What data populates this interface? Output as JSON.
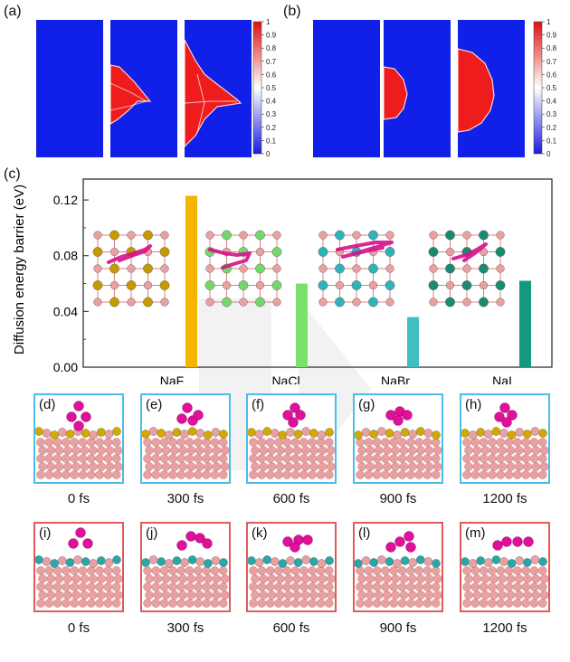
{
  "panel_a": {
    "label": "(a)",
    "colorbar_ticks": [
      "1",
      "0.9",
      "0.8",
      "0.7",
      "0.6",
      "0.5",
      "0.4",
      "0.3",
      "0.2",
      "0.1",
      "0"
    ],
    "frames": [
      0,
      1,
      2
    ]
  },
  "panel_b": {
    "label": "(b)",
    "colorbar_ticks": [
      "1",
      "0.9",
      "0.8",
      "0.7",
      "0.6",
      "0.5",
      "0.4",
      "0.3",
      "0.2",
      "0.1",
      "0"
    ],
    "frames": [
      0,
      1,
      2
    ]
  },
  "panel_c": {
    "label": "(c)",
    "chart_data": {
      "type": "bar",
      "categories": [
        "NaF",
        "NaCl",
        "NaBr",
        "NaI"
      ],
      "values": [
        0.123,
        0.06,
        0.036,
        0.062
      ],
      "colors": [
        "#f5b400",
        "#7be16a",
        "#3fbfc2",
        "#139a7c"
      ],
      "title": "",
      "xlabel": "",
      "ylabel": "Diffusion energy barrier (eV)",
      "ylim": [
        0,
        0.135
      ],
      "yticks": [
        "0.00",
        "0.04",
        "0.08",
        "0.12"
      ],
      "grid": false
    },
    "lattice_colors": [
      "#c49a00",
      "#74d66b",
      "#2fb3b8",
      "#1a8a70"
    ]
  },
  "md_row1": {
    "border_color": "#4bbde8",
    "surface_color": "#d4a800",
    "frames": [
      {
        "label": "(d)",
        "time": "0 fs"
      },
      {
        "label": "(e)",
        "time": "300 fs"
      },
      {
        "label": "(f)",
        "time": "600 fs"
      },
      {
        "label": "(g)",
        "time": "900 fs"
      },
      {
        "label": "(h)",
        "time": "1200 fs"
      }
    ]
  },
  "md_row2": {
    "border_color": "#e05a5a",
    "surface_color": "#2aa6a8",
    "frames": [
      {
        "label": "(i)",
        "time": "0 fs"
      },
      {
        "label": "(j)",
        "time": "300 fs"
      },
      {
        "label": "(k)",
        "time": "600 fs"
      },
      {
        "label": "(l)",
        "time": "900 fs"
      },
      {
        "label": "(m)",
        "time": "1200 fs"
      }
    ]
  },
  "colors": {
    "phase_blue": "#1020e8",
    "phase_red": "#ee1c1c",
    "substrate_atom": "#e8a0a0",
    "adatom": "#e0109a",
    "trajectory": "#d5108a"
  }
}
